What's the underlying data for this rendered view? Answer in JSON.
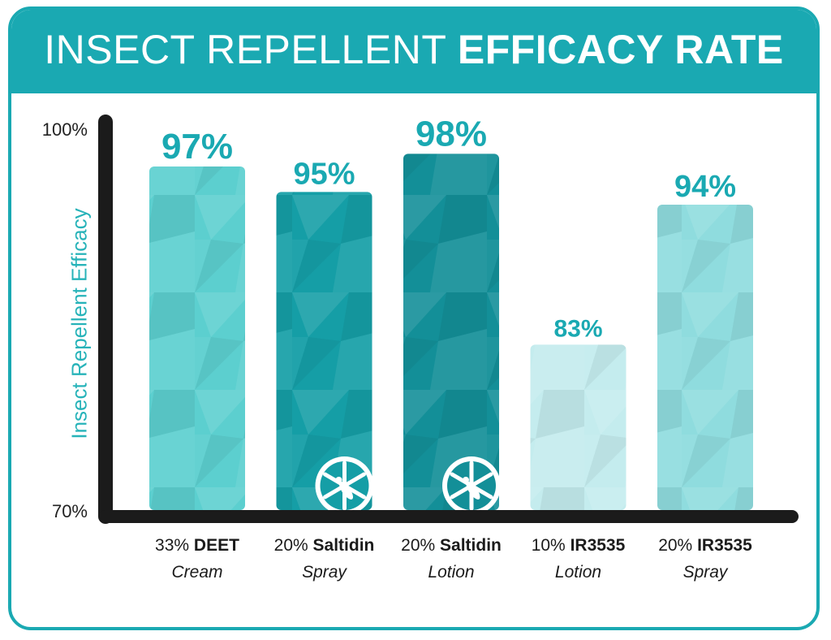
{
  "title": {
    "regular": "INSECT REPELLENT ",
    "bold": "EFFICACY RATE"
  },
  "chart_data": {
    "type": "bar",
    "title": "INSECT REPELLENT EFFICACY RATE",
    "ylabel": "Insect Repellent Efficacy",
    "ylim": [
      70,
      100
    ],
    "yticks": [
      "100%",
      "70%"
    ],
    "grid": false,
    "categories": [
      {
        "pct": "33%",
        "name": "DEET",
        "form": "Cream"
      },
      {
        "pct": "20%",
        "name": "Saltidin",
        "form": "Spray"
      },
      {
        "pct": "20%",
        "name": "Saltidin",
        "form": "Lotion"
      },
      {
        "pct": "10%",
        "name": "IR3535",
        "form": "Lotion"
      },
      {
        "pct": "20%",
        "name": "IR3535",
        "form": "Spray"
      }
    ],
    "values": [
      97,
      95,
      98,
      83,
      94
    ],
    "value_labels": [
      "97%",
      "95%",
      "98%",
      "83%",
      "94%"
    ],
    "badges": [
      false,
      true,
      true,
      false,
      false
    ],
    "colors": [
      "#5ccfcf",
      "#159ea6",
      "#138f98",
      "#c4ecee",
      "#8fdcde"
    ],
    "label_color": "#1aa9b2",
    "axis_color": "#1b1b1b"
  },
  "badge_icon": "mosquito-shield-icon"
}
